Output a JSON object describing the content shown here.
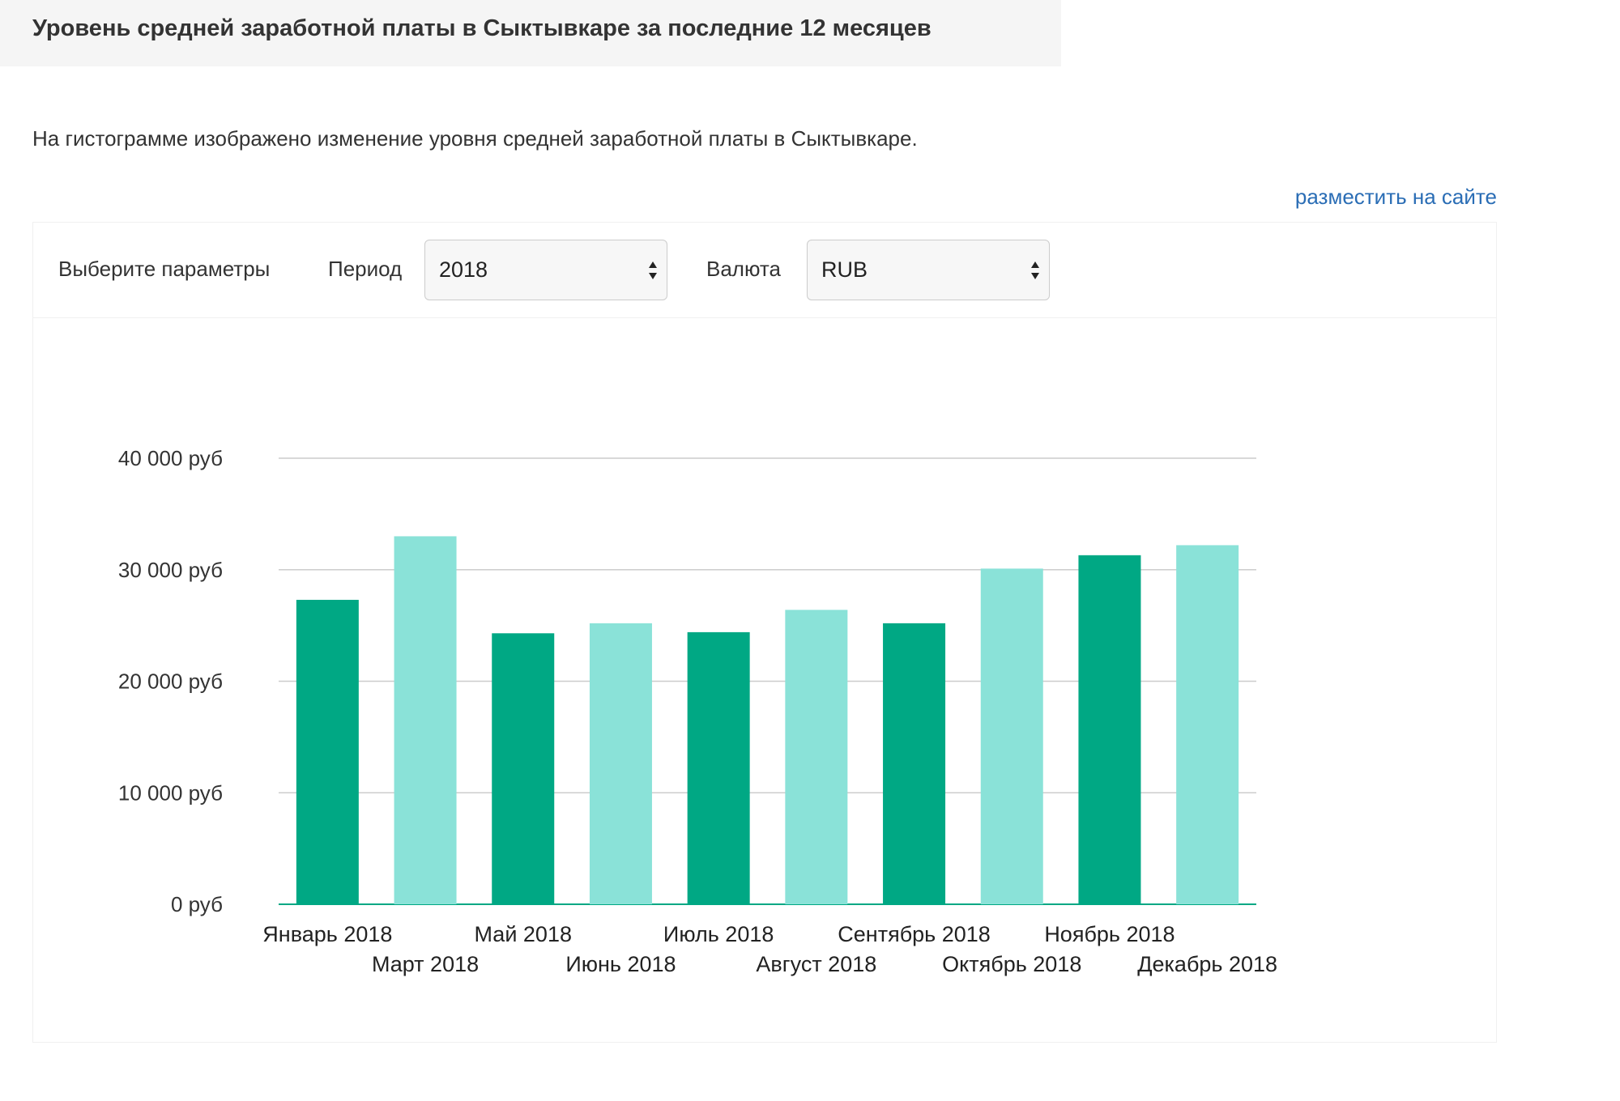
{
  "header": {
    "title": "Уровень средней заработной платы в Сыктывкаре за последние 12 месяцев"
  },
  "description": "На гистограмме изображено изменение уровня средней заработной платы в Сыктывкаре.",
  "embed_link": "разместить на сайте",
  "controls": {
    "params_label": "Выберите параметры",
    "period_label": "Период",
    "period_value": "2018",
    "currency_label": "Валюта",
    "currency_value": "RUB"
  },
  "colors": {
    "dark_bar": "#00a884",
    "light_bar": "#8ae2d8",
    "grid": "#cccccc",
    "baseline": "#00a884",
    "link": "#2a6db5"
  },
  "chart_data": {
    "type": "bar",
    "title": "",
    "xlabel": "",
    "ylabel": "",
    "categories": [
      "Январь 2018",
      "Март 2018",
      "Май 2018",
      "Июнь 2018",
      "Июль 2018",
      "Август 2018",
      "Сентябрь 2018",
      "Октябрь 2018",
      "Ноябрь 2018",
      "Декабрь 2018"
    ],
    "values": [
      27300,
      33000,
      24300,
      25200,
      24400,
      26400,
      25200,
      30100,
      31300,
      32200
    ],
    "bar_shades": [
      "dark",
      "light",
      "dark",
      "light",
      "dark",
      "light",
      "dark",
      "light",
      "dark",
      "light"
    ],
    "ylim": [
      0,
      40000
    ],
    "yticks": [
      0,
      10000,
      20000,
      30000,
      40000
    ],
    "ytick_labels": [
      "0 руб",
      "10 000 руб",
      "20 000 руб",
      "30 000 руб",
      "40 000 руб"
    ],
    "grid": true,
    "legend": "none"
  }
}
